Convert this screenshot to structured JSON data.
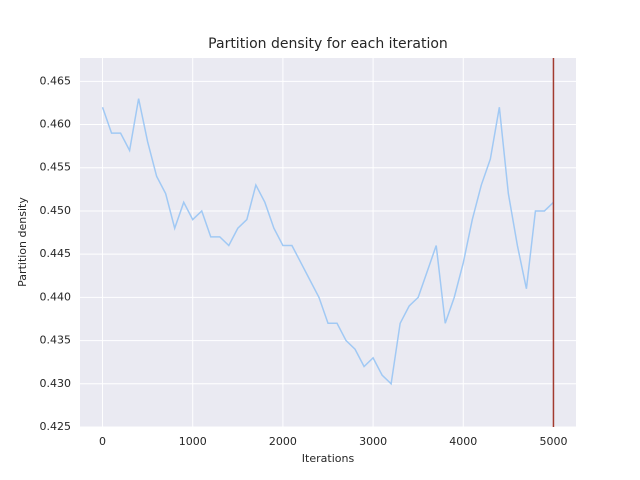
{
  "chart_data": {
    "type": "line",
    "title": "Partition density for each iteration",
    "xlabel": "Iterations",
    "ylabel": "Partition density",
    "x": [
      0,
      100,
      200,
      300,
      400,
      500,
      600,
      700,
      800,
      900,
      1000,
      1100,
      1200,
      1300,
      1400,
      1500,
      1600,
      1700,
      1800,
      1900,
      2000,
      2100,
      2200,
      2300,
      2400,
      2500,
      2600,
      2700,
      2800,
      2900,
      3000,
      3100,
      3200,
      3300,
      3400,
      3500,
      3600,
      3700,
      3800,
      3900,
      4000,
      4100,
      4200,
      4300,
      4400,
      4500,
      4600,
      4700,
      4800,
      4900,
      5000
    ],
    "series": [
      {
        "color": "#a1c9f4",
        "values": [
          0.462,
          0.459,
          0.459,
          0.457,
          0.463,
          0.458,
          0.454,
          0.452,
          0.448,
          0.451,
          0.449,
          0.45,
          0.447,
          0.447,
          0.446,
          0.448,
          0.449,
          0.453,
          0.451,
          0.448,
          0.446,
          0.446,
          0.444,
          0.442,
          0.44,
          0.437,
          0.437,
          0.435,
          0.434,
          0.432,
          0.433,
          0.431,
          0.43,
          0.437,
          0.439,
          0.44,
          0.443,
          0.446,
          0.437,
          0.44,
          0.444,
          0.449,
          0.453,
          0.456,
          0.462,
          0.452,
          0.446,
          0.441,
          0.45,
          0.45,
          0.451
        ]
      }
    ],
    "vline": {
      "x": 5000,
      "color": "#a23b2f"
    },
    "xlim": [
      -250,
      5250
    ],
    "xticks": [
      0,
      1000,
      2000,
      3000,
      4000,
      5000
    ],
    "ylim": [
      0.425,
      0.4677
    ],
    "yticks": [
      0.425,
      {
        "value": 0.43,
        "label": "0.430"
      },
      0.435,
      {
        "value": 0.44,
        "label": "0.440"
      },
      0.445,
      {
        "value": 0.45,
        "label": "0.450"
      },
      0.455,
      {
        "value": 0.46,
        "label": "0.460"
      },
      0.465
    ],
    "grid": true
  }
}
